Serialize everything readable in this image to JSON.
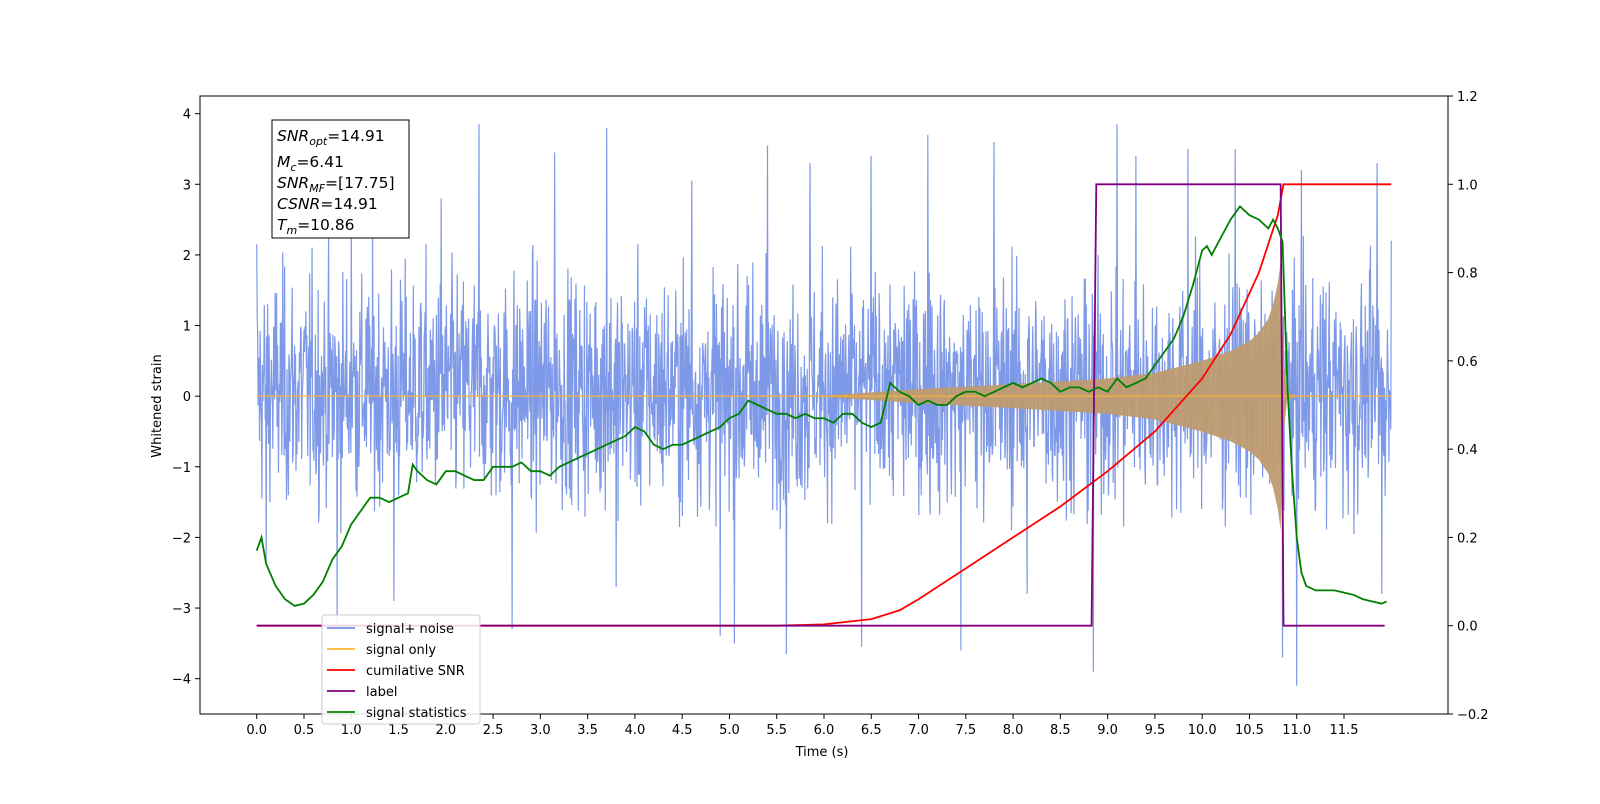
{
  "chart_data": {
    "type": "line",
    "xlabel": "Time (s)",
    "ylabel": "Whitened strain",
    "xlim": [
      -0.6,
      12.6
    ],
    "ylim_left": [
      -4.5,
      4.25
    ],
    "ylim_right": [
      -0.2,
      1.2
    ],
    "x_ticks": [
      0.0,
      0.5,
      1.0,
      1.5,
      2.0,
      2.5,
      3.0,
      3.5,
      4.0,
      4.5,
      5.0,
      5.5,
      6.0,
      6.5,
      7.0,
      7.5,
      8.0,
      8.5,
      9.0,
      9.5,
      10.0,
      10.5,
      11.0,
      11.5
    ],
    "x_tick_labels": [
      "0.0",
      "0.5",
      "1.0",
      "1.5",
      "2.0",
      "2.5",
      "3.0",
      "3.5",
      "4.0",
      "4.5",
      "5.0",
      "5.5",
      "6.0",
      "6.5",
      "7.0",
      "7.5",
      "8.0",
      "8.5",
      "9.0",
      "9.5",
      "10.0",
      "10.5",
      "11.0",
      "11.5"
    ],
    "y_left_ticks": [
      4,
      3,
      2,
      1,
      0,
      -1,
      -2,
      -3,
      -4
    ],
    "y_left_tick_labels": [
      "4",
      "3",
      "2",
      "1",
      "0",
      "−1",
      "−2",
      "−3",
      "−4"
    ],
    "y_right_ticks": [
      1.2,
      1.0,
      0.8,
      0.6,
      0.4,
      0.2,
      0.0,
      -0.2
    ],
    "y_right_tick_labels": [
      "1.2",
      "1.0",
      "0.8",
      "0.6",
      "0.4",
      "0.2",
      "0.0",
      "−0.2"
    ],
    "annotations": {
      "snr_opt": {
        "base": "SNR",
        "sub": "opt",
        "rest": "=14.91"
      },
      "mc": {
        "base": "M",
        "sub": "c",
        "rest": "=6.41"
      },
      "snr_mf": {
        "base": "SNR",
        "sub": "MF",
        "rest": "=[17.75]"
      },
      "csnr": {
        "base": "CSNR",
        "rest": "=14.91"
      },
      "tm": {
        "base": "T",
        "sub": "m",
        "rest": "=10.86"
      }
    },
    "series": [
      {
        "name": "signal+ noise",
        "color": "#7793e6",
        "axis": "left",
        "x_range": [
          0.0,
          12.0
        ],
        "typical_band": [
          -1.6,
          1.8
        ],
        "peak_values": [
          {
            "x": 0.0,
            "y": 2.15
          },
          {
            "x": 0.1,
            "y": -2.35
          },
          {
            "x": 0.85,
            "y": -3.2
          },
          {
            "x": 1.0,
            "y": 2.5
          },
          {
            "x": 1.45,
            "y": -2.9
          },
          {
            "x": 1.95,
            "y": 2.8
          },
          {
            "x": 2.35,
            "y": 3.85
          },
          {
            "x": 2.7,
            "y": -3.3
          },
          {
            "x": 3.15,
            "y": 3.45
          },
          {
            "x": 3.7,
            "y": 3.8
          },
          {
            "x": 3.8,
            "y": -2.7
          },
          {
            "x": 4.6,
            "y": 3.05
          },
          {
            "x": 4.9,
            "y": -3.4
          },
          {
            "x": 5.05,
            "y": -3.5
          },
          {
            "x": 5.4,
            "y": 3.55
          },
          {
            "x": 5.6,
            "y": -3.65
          },
          {
            "x": 5.85,
            "y": 3.3
          },
          {
            "x": 6.4,
            "y": -3.55
          },
          {
            "x": 6.5,
            "y": 3.4
          },
          {
            "x": 7.1,
            "y": 3.7
          },
          {
            "x": 7.45,
            "y": -3.6
          },
          {
            "x": 7.8,
            "y": 3.6
          },
          {
            "x": 8.15,
            "y": -2.8
          },
          {
            "x": 8.85,
            "y": -3.9
          },
          {
            "x": 9.1,
            "y": 3.85
          },
          {
            "x": 9.3,
            "y": 3.4
          },
          {
            "x": 9.85,
            "y": 3.5
          },
          {
            "x": 10.35,
            "y": 3.5
          },
          {
            "x": 10.85,
            "y": -3.7
          },
          {
            "x": 11.0,
            "y": -4.1
          },
          {
            "x": 11.05,
            "y": 3.2
          },
          {
            "x": 11.85,
            "y": 3.3
          },
          {
            "x": 11.9,
            "y": -2.8
          },
          {
            "x": 12.0,
            "y": 2.2
          }
        ]
      },
      {
        "name": "signal only",
        "color": "#ffb732",
        "axis": "left",
        "envelope_x": [
          0.0,
          6.0,
          7.0,
          8.0,
          8.5,
          9.0,
          9.5,
          10.0,
          10.3,
          10.5,
          10.6,
          10.7,
          10.75,
          10.8,
          10.83,
          10.86,
          10.9,
          11.0,
          12.0
        ],
        "envelope_amplitude": [
          0.0,
          0.01,
          0.1,
          0.17,
          0.21,
          0.25,
          0.33,
          0.5,
          0.64,
          0.78,
          0.9,
          1.1,
          1.3,
          1.6,
          1.9,
          0.5,
          0.05,
          0.01,
          0.0
        ]
      },
      {
        "name": "cumilative SNR",
        "color": "#ff0000",
        "axis": "right",
        "x": [
          0.0,
          5.5,
          6.0,
          6.5,
          6.8,
          7.0,
          7.5,
          8.0,
          8.5,
          9.0,
          9.5,
          10.0,
          10.3,
          10.6,
          10.8,
          10.86,
          11.0,
          12.0
        ],
        "y": [
          0.0,
          0.0,
          0.003,
          0.015,
          0.035,
          0.06,
          0.13,
          0.2,
          0.27,
          0.35,
          0.44,
          0.56,
          0.66,
          0.8,
          0.93,
          1.0,
          1.0,
          1.0
        ]
      },
      {
        "name": "label",
        "color": "#800080",
        "axis": "right",
        "x": [
          0.0,
          8.83,
          8.88,
          10.83,
          10.86,
          11.93
        ],
        "y": [
          0.0,
          0.0,
          1.0,
          1.0,
          0.0,
          0.0
        ]
      },
      {
        "name": "signal statistics",
        "color": "#008000",
        "axis": "right",
        "x": [
          0.0,
          0.05,
          0.1,
          0.2,
          0.3,
          0.4,
          0.5,
          0.6,
          0.7,
          0.8,
          0.9,
          1.0,
          1.1,
          1.2,
          1.3,
          1.4,
          1.5,
          1.6,
          1.65,
          1.7,
          1.8,
          1.9,
          2.0,
          2.1,
          2.2,
          2.3,
          2.4,
          2.5,
          2.6,
          2.7,
          2.8,
          2.9,
          3.0,
          3.1,
          3.2,
          3.3,
          3.4,
          3.5,
          3.6,
          3.7,
          3.8,
          3.9,
          4.0,
          4.1,
          4.2,
          4.3,
          4.4,
          4.5,
          4.6,
          4.7,
          4.8,
          4.9,
          5.0,
          5.1,
          5.2,
          5.3,
          5.4,
          5.5,
          5.6,
          5.7,
          5.8,
          5.9,
          6.0,
          6.1,
          6.2,
          6.3,
          6.4,
          6.5,
          6.6,
          6.7,
          6.8,
          6.9,
          7.0,
          7.1,
          7.2,
          7.3,
          7.4,
          7.5,
          7.6,
          7.7,
          7.8,
          7.9,
          8.0,
          8.1,
          8.2,
          8.3,
          8.4,
          8.5,
          8.6,
          8.7,
          8.8,
          8.9,
          9.0,
          9.1,
          9.2,
          9.3,
          9.4,
          9.5,
          9.6,
          9.7,
          9.8,
          9.9,
          10.0,
          10.05,
          10.1,
          10.2,
          10.3,
          10.4,
          10.5,
          10.6,
          10.7,
          10.75,
          10.8,
          10.85,
          10.9,
          10.95,
          11.0,
          11.05,
          11.1,
          11.2,
          11.3,
          11.4,
          11.5,
          11.6,
          11.7,
          11.8,
          11.9,
          11.95
        ],
        "y": [
          0.17,
          0.2,
          0.14,
          0.09,
          0.06,
          0.045,
          0.05,
          0.07,
          0.1,
          0.15,
          0.18,
          0.23,
          0.26,
          0.29,
          0.29,
          0.28,
          0.29,
          0.3,
          0.365,
          0.35,
          0.33,
          0.32,
          0.35,
          0.35,
          0.34,
          0.33,
          0.33,
          0.36,
          0.36,
          0.36,
          0.37,
          0.35,
          0.35,
          0.34,
          0.36,
          0.37,
          0.38,
          0.39,
          0.4,
          0.41,
          0.42,
          0.43,
          0.45,
          0.44,
          0.41,
          0.4,
          0.41,
          0.41,
          0.42,
          0.43,
          0.44,
          0.45,
          0.47,
          0.48,
          0.51,
          0.5,
          0.49,
          0.48,
          0.48,
          0.47,
          0.48,
          0.47,
          0.47,
          0.46,
          0.48,
          0.48,
          0.46,
          0.45,
          0.46,
          0.55,
          0.53,
          0.52,
          0.5,
          0.51,
          0.5,
          0.5,
          0.52,
          0.53,
          0.53,
          0.52,
          0.53,
          0.54,
          0.55,
          0.54,
          0.55,
          0.56,
          0.55,
          0.53,
          0.54,
          0.54,
          0.53,
          0.54,
          0.53,
          0.56,
          0.54,
          0.55,
          0.56,
          0.59,
          0.62,
          0.65,
          0.7,
          0.77,
          0.85,
          0.86,
          0.84,
          0.88,
          0.92,
          0.95,
          0.93,
          0.92,
          0.9,
          0.92,
          0.9,
          0.87,
          0.55,
          0.35,
          0.2,
          0.12,
          0.09,
          0.08,
          0.08,
          0.08,
          0.075,
          0.07,
          0.06,
          0.055,
          0.05,
          0.055
        ]
      }
    ],
    "legend_placement": "lower-left",
    "legend_entries": [
      "signal+ noise",
      "signal only",
      "cumilative SNR",
      "label",
      "signal statistics"
    ],
    "grid": false
  }
}
